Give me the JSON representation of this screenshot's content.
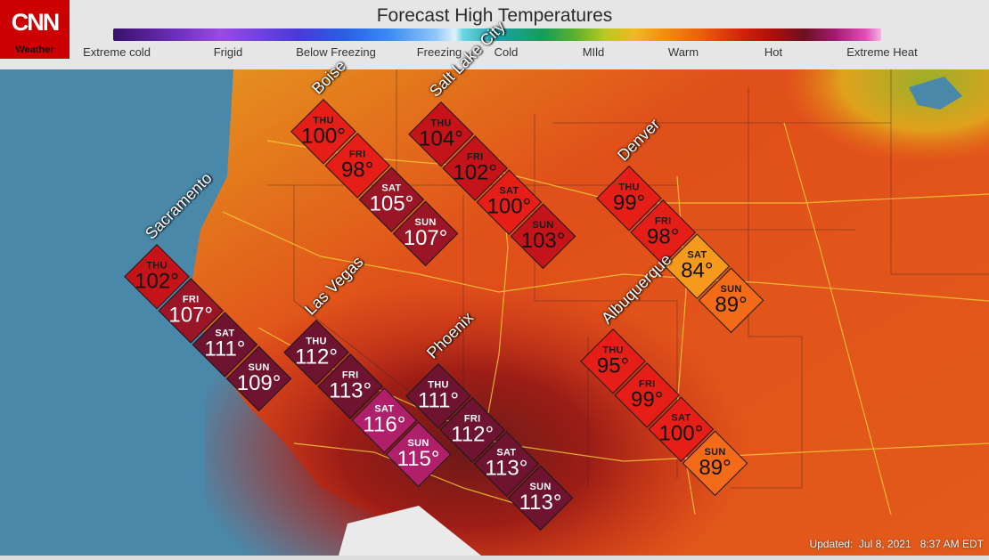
{
  "header": {
    "title": "Forecast High Temperatures",
    "logo_text": "CNN",
    "logo_sub": "Weather"
  },
  "scale": {
    "labels": [
      "Extreme cold",
      "Frigid",
      "Below Freezing",
      "Freezing",
      "Cold",
      "MIld",
      "Warm",
      "Hot",
      "Extreme Heat"
    ]
  },
  "colors": {
    "temp_84": "#f59a1c",
    "temp_89": "#f36a18",
    "temp_95_100": "#e51e18",
    "temp_102_104": "#c4141a",
    "temp_105_107": "#9a1525",
    "temp_109_113": "#6e1330",
    "temp_115_116": "#b01f6a",
    "ocean": "#4a8cae",
    "land": "#e04a1c"
  },
  "cities": [
    {
      "name": "Boise",
      "forecast": [
        {
          "day": "THU",
          "temp": "100°"
        },
        {
          "day": "FRI",
          "temp": "98°"
        },
        {
          "day": "SAT",
          "temp": "105°"
        },
        {
          "day": "SUN",
          "temp": "107°"
        }
      ]
    },
    {
      "name": "Salt Lake City",
      "forecast": [
        {
          "day": "THU",
          "temp": "104°"
        },
        {
          "day": "FRI",
          "temp": "102°"
        },
        {
          "day": "SAT",
          "temp": "100°"
        },
        {
          "day": "SUN",
          "temp": "103°"
        }
      ]
    },
    {
      "name": "Denver",
      "forecast": [
        {
          "day": "THU",
          "temp": "99°"
        },
        {
          "day": "FRI",
          "temp": "98°"
        },
        {
          "day": "SAT",
          "temp": "84°"
        },
        {
          "day": "SUN",
          "temp": "89°"
        }
      ]
    },
    {
      "name": "Sacramento",
      "forecast": [
        {
          "day": "THU",
          "temp": "102°"
        },
        {
          "day": "FRI",
          "temp": "107°"
        },
        {
          "day": "SAT",
          "temp": "111°"
        },
        {
          "day": "SUN",
          "temp": "109°"
        }
      ]
    },
    {
      "name": "Las Vegas",
      "forecast": [
        {
          "day": "THU",
          "temp": "112°"
        },
        {
          "day": "FRI",
          "temp": "113°"
        },
        {
          "day": "SAT",
          "temp": "116°"
        },
        {
          "day": "SUN",
          "temp": "115°"
        }
      ]
    },
    {
      "name": "Phoenix",
      "forecast": [
        {
          "day": "THU",
          "temp": "111°"
        },
        {
          "day": "FRI",
          "temp": "112°"
        },
        {
          "day": "SAT",
          "temp": "113°"
        },
        {
          "day": "SUN",
          "temp": "113°"
        }
      ]
    },
    {
      "name": "Albuquerque",
      "forecast": [
        {
          "day": "THU",
          "temp": "95°"
        },
        {
          "day": "FRI",
          "temp": "99°"
        },
        {
          "day": "SAT",
          "temp": "100°"
        },
        {
          "day": "SUN",
          "temp": "89°"
        }
      ]
    }
  ],
  "footer": {
    "updated": "Updated:  Jul 8, 2021   8:37 AM EDT"
  }
}
